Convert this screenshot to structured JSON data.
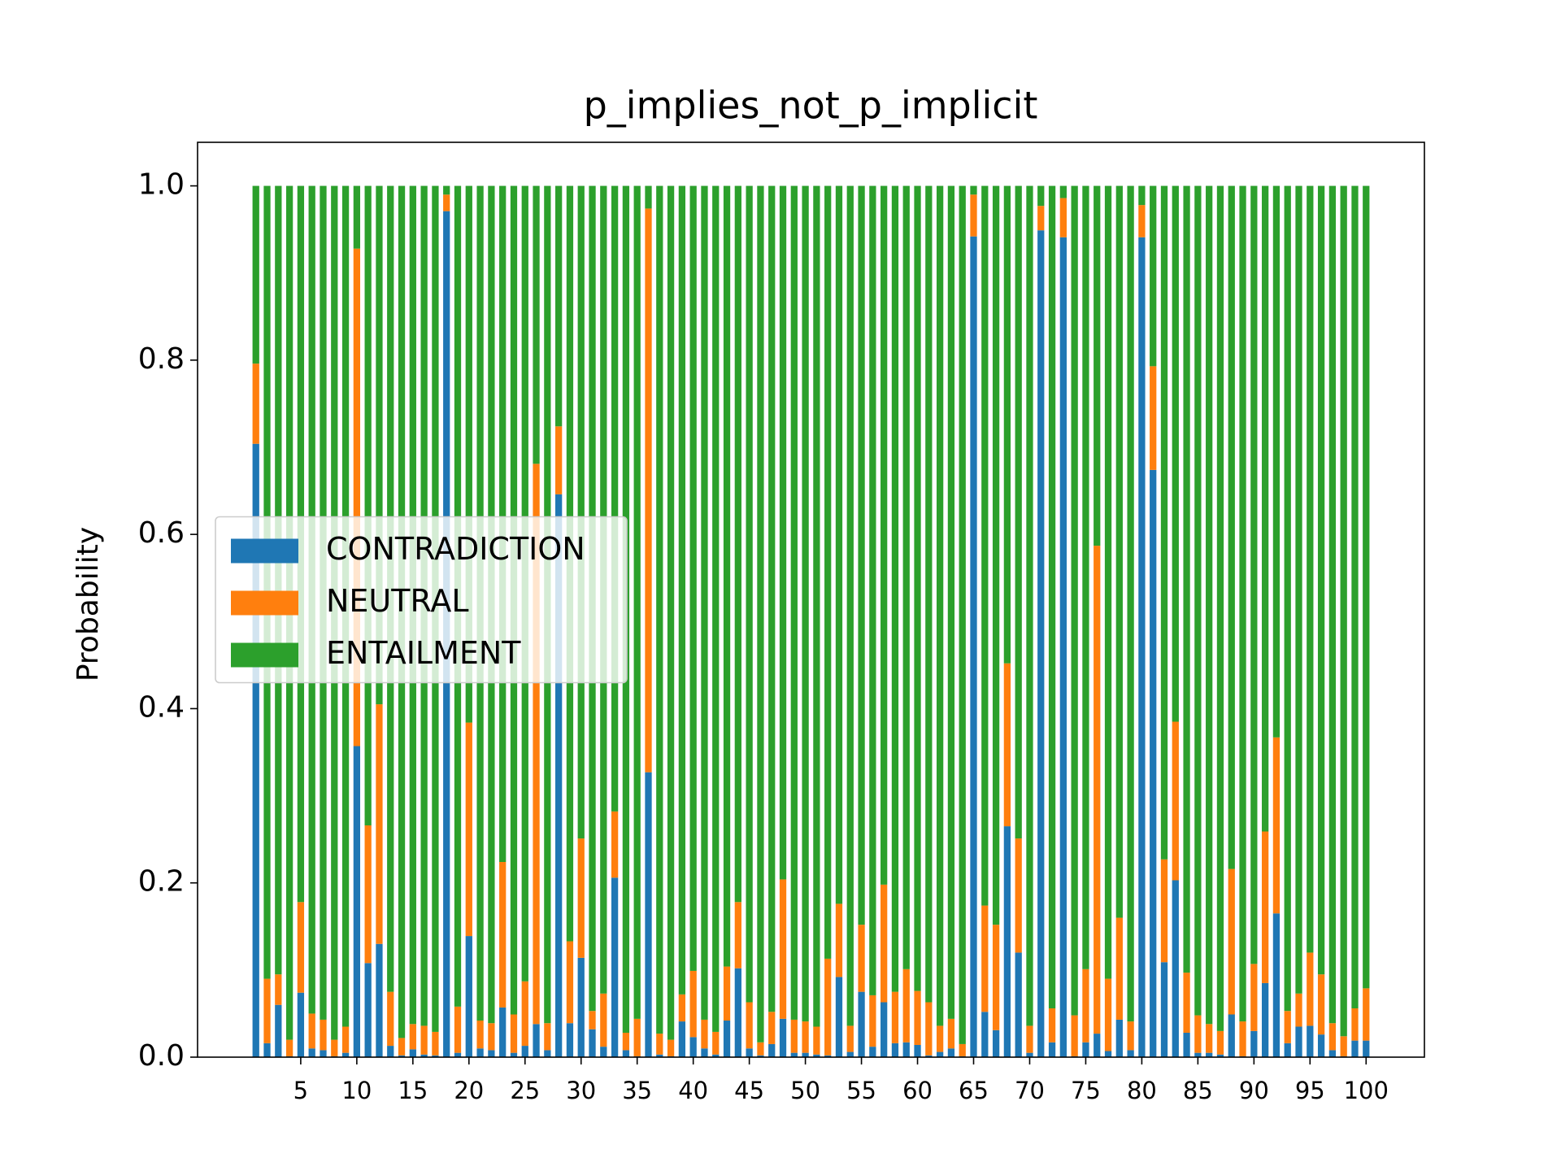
{
  "chart_data": {
    "type": "stacked_bar",
    "title": "p_implies_not_p_implicit",
    "ylabel": "Probability",
    "x": [
      1,
      2,
      3,
      4,
      5,
      6,
      7,
      8,
      9,
      10,
      11,
      12,
      13,
      14,
      15,
      16,
      17,
      18,
      19,
      20,
      21,
      22,
      23,
      24,
      25,
      26,
      27,
      28,
      29,
      30,
      31,
      32,
      33,
      34,
      35,
      36,
      37,
      38,
      39,
      40,
      41,
      42,
      43,
      44,
      45,
      46,
      47,
      48,
      49,
      50,
      51,
      52,
      53,
      54,
      55,
      56,
      57,
      58,
      59,
      60,
      61,
      62,
      63,
      64,
      65,
      66,
      67,
      68,
      69,
      70,
      71,
      72,
      73,
      74,
      75,
      76,
      77,
      78,
      79,
      80,
      81,
      82,
      83,
      84,
      85,
      86,
      87,
      88,
      89,
      90,
      91,
      92,
      93,
      94,
      95,
      96,
      97,
      98,
      99,
      100
    ],
    "series": [
      {
        "name": "CONTRADICTION",
        "color": "#1f77b4",
        "values": [
          0.704,
          0.016,
          0.06,
          0.001,
          0.074,
          0.01,
          0.008,
          0.001,
          0.005,
          0.357,
          0.108,
          0.13,
          0.013,
          0.002,
          0.009,
          0.003,
          0.002,
          0.971,
          0.005,
          0.139,
          0.01,
          0.008,
          0.057,
          0.005,
          0.013,
          0.038,
          0.008,
          0.646,
          0.039,
          0.114,
          0.032,
          0.012,
          0.206,
          0.008,
          0.001,
          0.327,
          0.003,
          0.001,
          0.041,
          0.023,
          0.01,
          0.003,
          0.042,
          0.102,
          0.01,
          0.002,
          0.015,
          0.044,
          0.005,
          0.005,
          0.003,
          0.002,
          0.092,
          0.006,
          0.075,
          0.012,
          0.063,
          0.016,
          0.017,
          0.014,
          0.002,
          0.006,
          0.01,
          0.001,
          0.942,
          0.052,
          0.031,
          0.265,
          0.12,
          0.005,
          0.949,
          0.017,
          0.941,
          0.001,
          0.017,
          0.027,
          0.007,
          0.043,
          0.008,
          0.941,
          0.674,
          0.109,
          0.203,
          0.028,
          0.005,
          0.005,
          0.003,
          0.049,
          0.001,
          0.03,
          0.085,
          0.165,
          0.016,
          0.035,
          0.036,
          0.026,
          0.008,
          0.001,
          0.019,
          0.019
        ]
      },
      {
        "name": "NEUTRAL",
        "color": "#ff7f0e",
        "values": [
          0.092,
          0.074,
          0.035,
          0.019,
          0.104,
          0.04,
          0.035,
          0.019,
          0.03,
          0.571,
          0.158,
          0.275,
          0.062,
          0.02,
          0.029,
          0.033,
          0.027,
          0.019,
          0.053,
          0.245,
          0.032,
          0.031,
          0.167,
          0.044,
          0.074,
          0.643,
          0.031,
          0.078,
          0.094,
          0.137,
          0.021,
          0.061,
          0.076,
          0.02,
          0.043,
          0.647,
          0.024,
          0.019,
          0.031,
          0.076,
          0.033,
          0.026,
          0.062,
          0.076,
          0.053,
          0.015,
          0.037,
          0.16,
          0.038,
          0.036,
          0.032,
          0.111,
          0.084,
          0.03,
          0.077,
          0.059,
          0.135,
          0.059,
          0.084,
          0.062,
          0.061,
          0.03,
          0.034,
          0.014,
          0.048,
          0.122,
          0.121,
          0.187,
          0.131,
          0.031,
          0.028,
          0.039,
          0.045,
          0.047,
          0.084,
          0.56,
          0.083,
          0.117,
          0.033,
          0.037,
          0.119,
          0.118,
          0.182,
          0.069,
          0.043,
          0.033,
          0.027,
          0.167,
          0.04,
          0.077,
          0.174,
          0.202,
          0.037,
          0.038,
          0.084,
          0.069,
          0.031,
          0.023,
          0.037,
          0.06
        ]
      },
      {
        "name": "ENTAILMENT",
        "color": "#2ca02c",
        "values": [
          0.204,
          0.91,
          0.905,
          0.98,
          0.822,
          0.95,
          0.957,
          0.98,
          0.965,
          0.072,
          0.734,
          0.595,
          0.925,
          0.978,
          0.962,
          0.964,
          0.971,
          0.01,
          0.942,
          0.616,
          0.958,
          0.961,
          0.776,
          0.951,
          0.913,
          0.319,
          0.961,
          0.276,
          0.867,
          0.749,
          0.947,
          0.927,
          0.718,
          0.972,
          0.956,
          0.026,
          0.973,
          0.98,
          0.928,
          0.901,
          0.957,
          0.971,
          0.896,
          0.822,
          0.937,
          0.983,
          0.948,
          0.796,
          0.957,
          0.959,
          0.965,
          0.887,
          0.824,
          0.964,
          0.848,
          0.929,
          0.802,
          0.925,
          0.899,
          0.924,
          0.937,
          0.964,
          0.956,
          0.985,
          0.01,
          0.826,
          0.848,
          0.548,
          0.749,
          0.964,
          0.023,
          0.944,
          0.014,
          0.952,
          0.899,
          0.413,
          0.91,
          0.84,
          0.959,
          0.022,
          0.207,
          0.773,
          0.615,
          0.903,
          0.952,
          0.962,
          0.97,
          0.784,
          0.959,
          0.893,
          0.741,
          0.633,
          0.947,
          0.927,
          0.88,
          0.905,
          0.961,
          0.976,
          0.944,
          0.921
        ]
      }
    ],
    "xlim": [
      -4.2,
      105.2
    ],
    "xticks": [
      5,
      10,
      15,
      20,
      25,
      30,
      35,
      40,
      45,
      50,
      55,
      60,
      65,
      70,
      75,
      80,
      85,
      90,
      95,
      100
    ],
    "ylim": [
      0,
      1.05
    ],
    "yticks": [
      {
        "value": 0,
        "label": "0.0"
      },
      0.2,
      0.4,
      0.6,
      0.8,
      {
        "value": 1,
        "label": "1.0"
      }
    ],
    "grid": false,
    "legend": "center left"
  }
}
